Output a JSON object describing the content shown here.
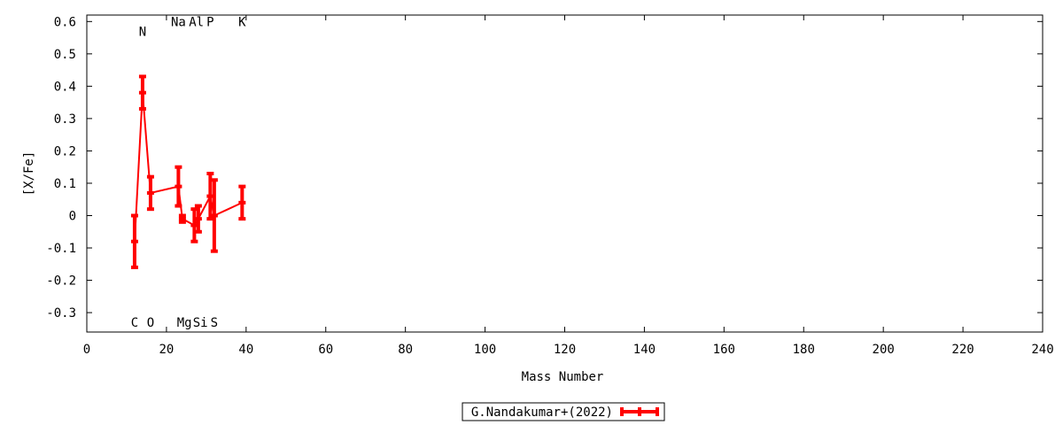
{
  "chart_data": {
    "type": "line",
    "title": "",
    "xlabel": "Mass Number",
    "ylabel": "[X/Fe]",
    "xlim": [
      0,
      240
    ],
    "ylim": [
      -0.36,
      0.62
    ],
    "xticks": [
      0,
      20,
      40,
      60,
      80,
      100,
      120,
      140,
      160,
      180,
      200,
      220,
      240
    ],
    "yticks": [
      -0.3,
      -0.2,
      -0.1,
      0,
      0.1,
      0.2,
      0.3,
      0.4,
      0.5,
      0.6
    ],
    "xtick_labels": [
      "0",
      "20",
      "40",
      "60",
      "80",
      "100",
      "120",
      "140",
      "160",
      "180",
      "200",
      "220",
      "240"
    ],
    "ytick_labels": [
      "-0.3",
      "-0.2",
      "-0.1",
      "0",
      "0.1",
      "0.2",
      "0.3",
      "0.4",
      "0.5",
      "0.6"
    ],
    "grid": false,
    "legend_position": "bottom-center",
    "series": [
      {
        "name": "G.Nandakumar+(2022)",
        "color": "#ff0000",
        "style": "linespoints with y-errorbars",
        "points": [
          {
            "x": 12,
            "y": -0.08,
            "err": 0.08
          },
          {
            "x": 14,
            "y": 0.38,
            "err": 0.05
          },
          {
            "x": 16,
            "y": 0.07,
            "err": 0.05
          },
          {
            "x": 23,
            "y": 0.09,
            "err": 0.06
          },
          {
            "x": 24,
            "y": -0.01,
            "err": 0.01
          },
          {
            "x": 27,
            "y": -0.03,
            "err": 0.05
          },
          {
            "x": 28,
            "y": -0.01,
            "err": 0.04
          },
          {
            "x": 31,
            "y": 0.06,
            "err": 0.07
          },
          {
            "x": 32,
            "y": 0.0,
            "err": 0.11
          },
          {
            "x": 39,
            "y": 0.04,
            "err": 0.05
          }
        ]
      }
    ],
    "annotations": [
      {
        "text": "C",
        "x": 12,
        "y": -0.33
      },
      {
        "text": "N",
        "x": 14,
        "y": 0.57
      },
      {
        "text": "O",
        "x": 16,
        "y": -0.33
      },
      {
        "text": "Na",
        "x": 23,
        "y": 0.6
      },
      {
        "text": "Mg",
        "x": 24.5,
        "y": -0.33
      },
      {
        "text": "Al",
        "x": 27.5,
        "y": 0.6
      },
      {
        "text": "Si",
        "x": 28.5,
        "y": -0.33
      },
      {
        "text": "P",
        "x": 31,
        "y": 0.6
      },
      {
        "text": "S",
        "x": 32,
        "y": -0.33
      },
      {
        "text": "K",
        "x": 39,
        "y": 0.6
      }
    ]
  }
}
